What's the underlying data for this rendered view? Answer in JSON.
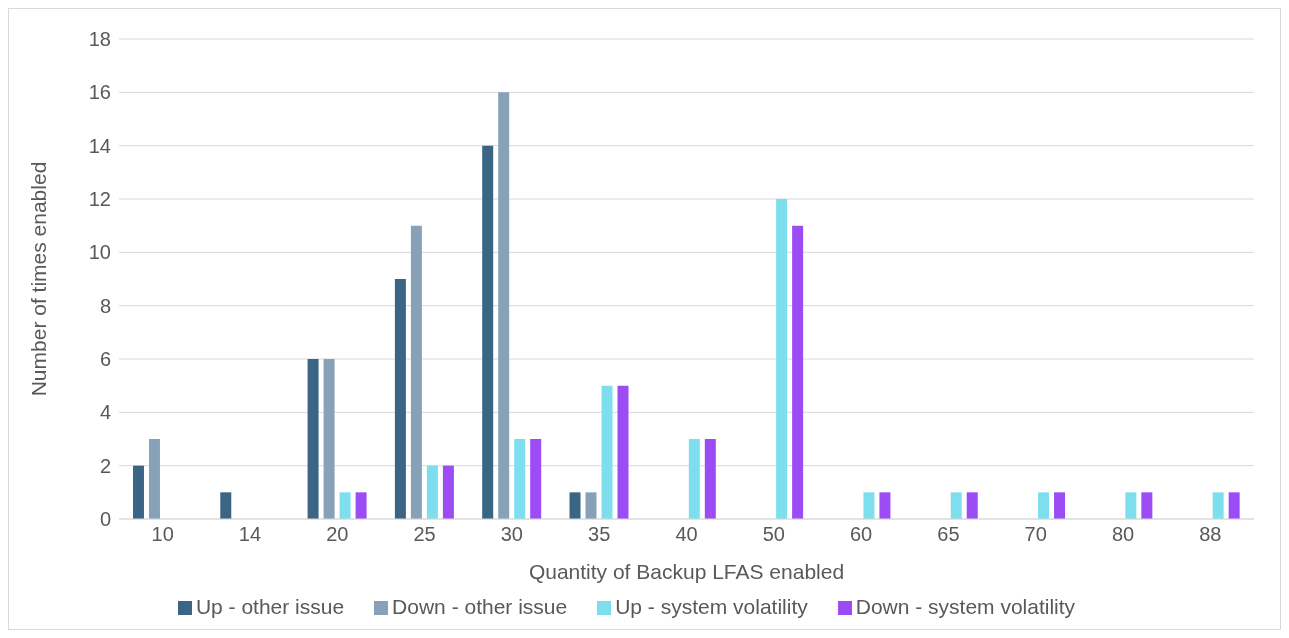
{
  "chart_data": {
    "type": "bar",
    "xlabel": "Quantity of Backup LFAS enabled",
    "ylabel": "Number of times enabled",
    "categories": [
      "10",
      "14",
      "20",
      "25",
      "30",
      "35",
      "40",
      "50",
      "60",
      "65",
      "70",
      "80",
      "88"
    ],
    "series": [
      {
        "name": "Up - other issue",
        "color": "#3b6584",
        "values": [
          2,
          1,
          6,
          9,
          14,
          1,
          0,
          0,
          0,
          0,
          0,
          0,
          0
        ]
      },
      {
        "name": "Down - other issue",
        "color": "#87a2b8",
        "values": [
          3,
          0,
          6,
          11,
          16,
          1,
          0,
          0,
          0,
          0,
          0,
          0,
          0
        ]
      },
      {
        "name": "Up - system volatility",
        "color": "#7ddfee",
        "values": [
          0,
          0,
          1,
          2,
          3,
          5,
          3,
          12,
          1,
          1,
          1,
          1,
          1
        ]
      },
      {
        "name": "Down - system volatility",
        "color": "#9b4cf5",
        "values": [
          0,
          0,
          1,
          2,
          3,
          5,
          3,
          11,
          1,
          1,
          1,
          1,
          1
        ]
      }
    ],
    "ylim": [
      0,
      18
    ],
    "yticks": [
      0,
      2,
      4,
      6,
      8,
      10,
      12,
      14,
      16,
      18
    ],
    "grid": "y",
    "legend": "bottom"
  }
}
